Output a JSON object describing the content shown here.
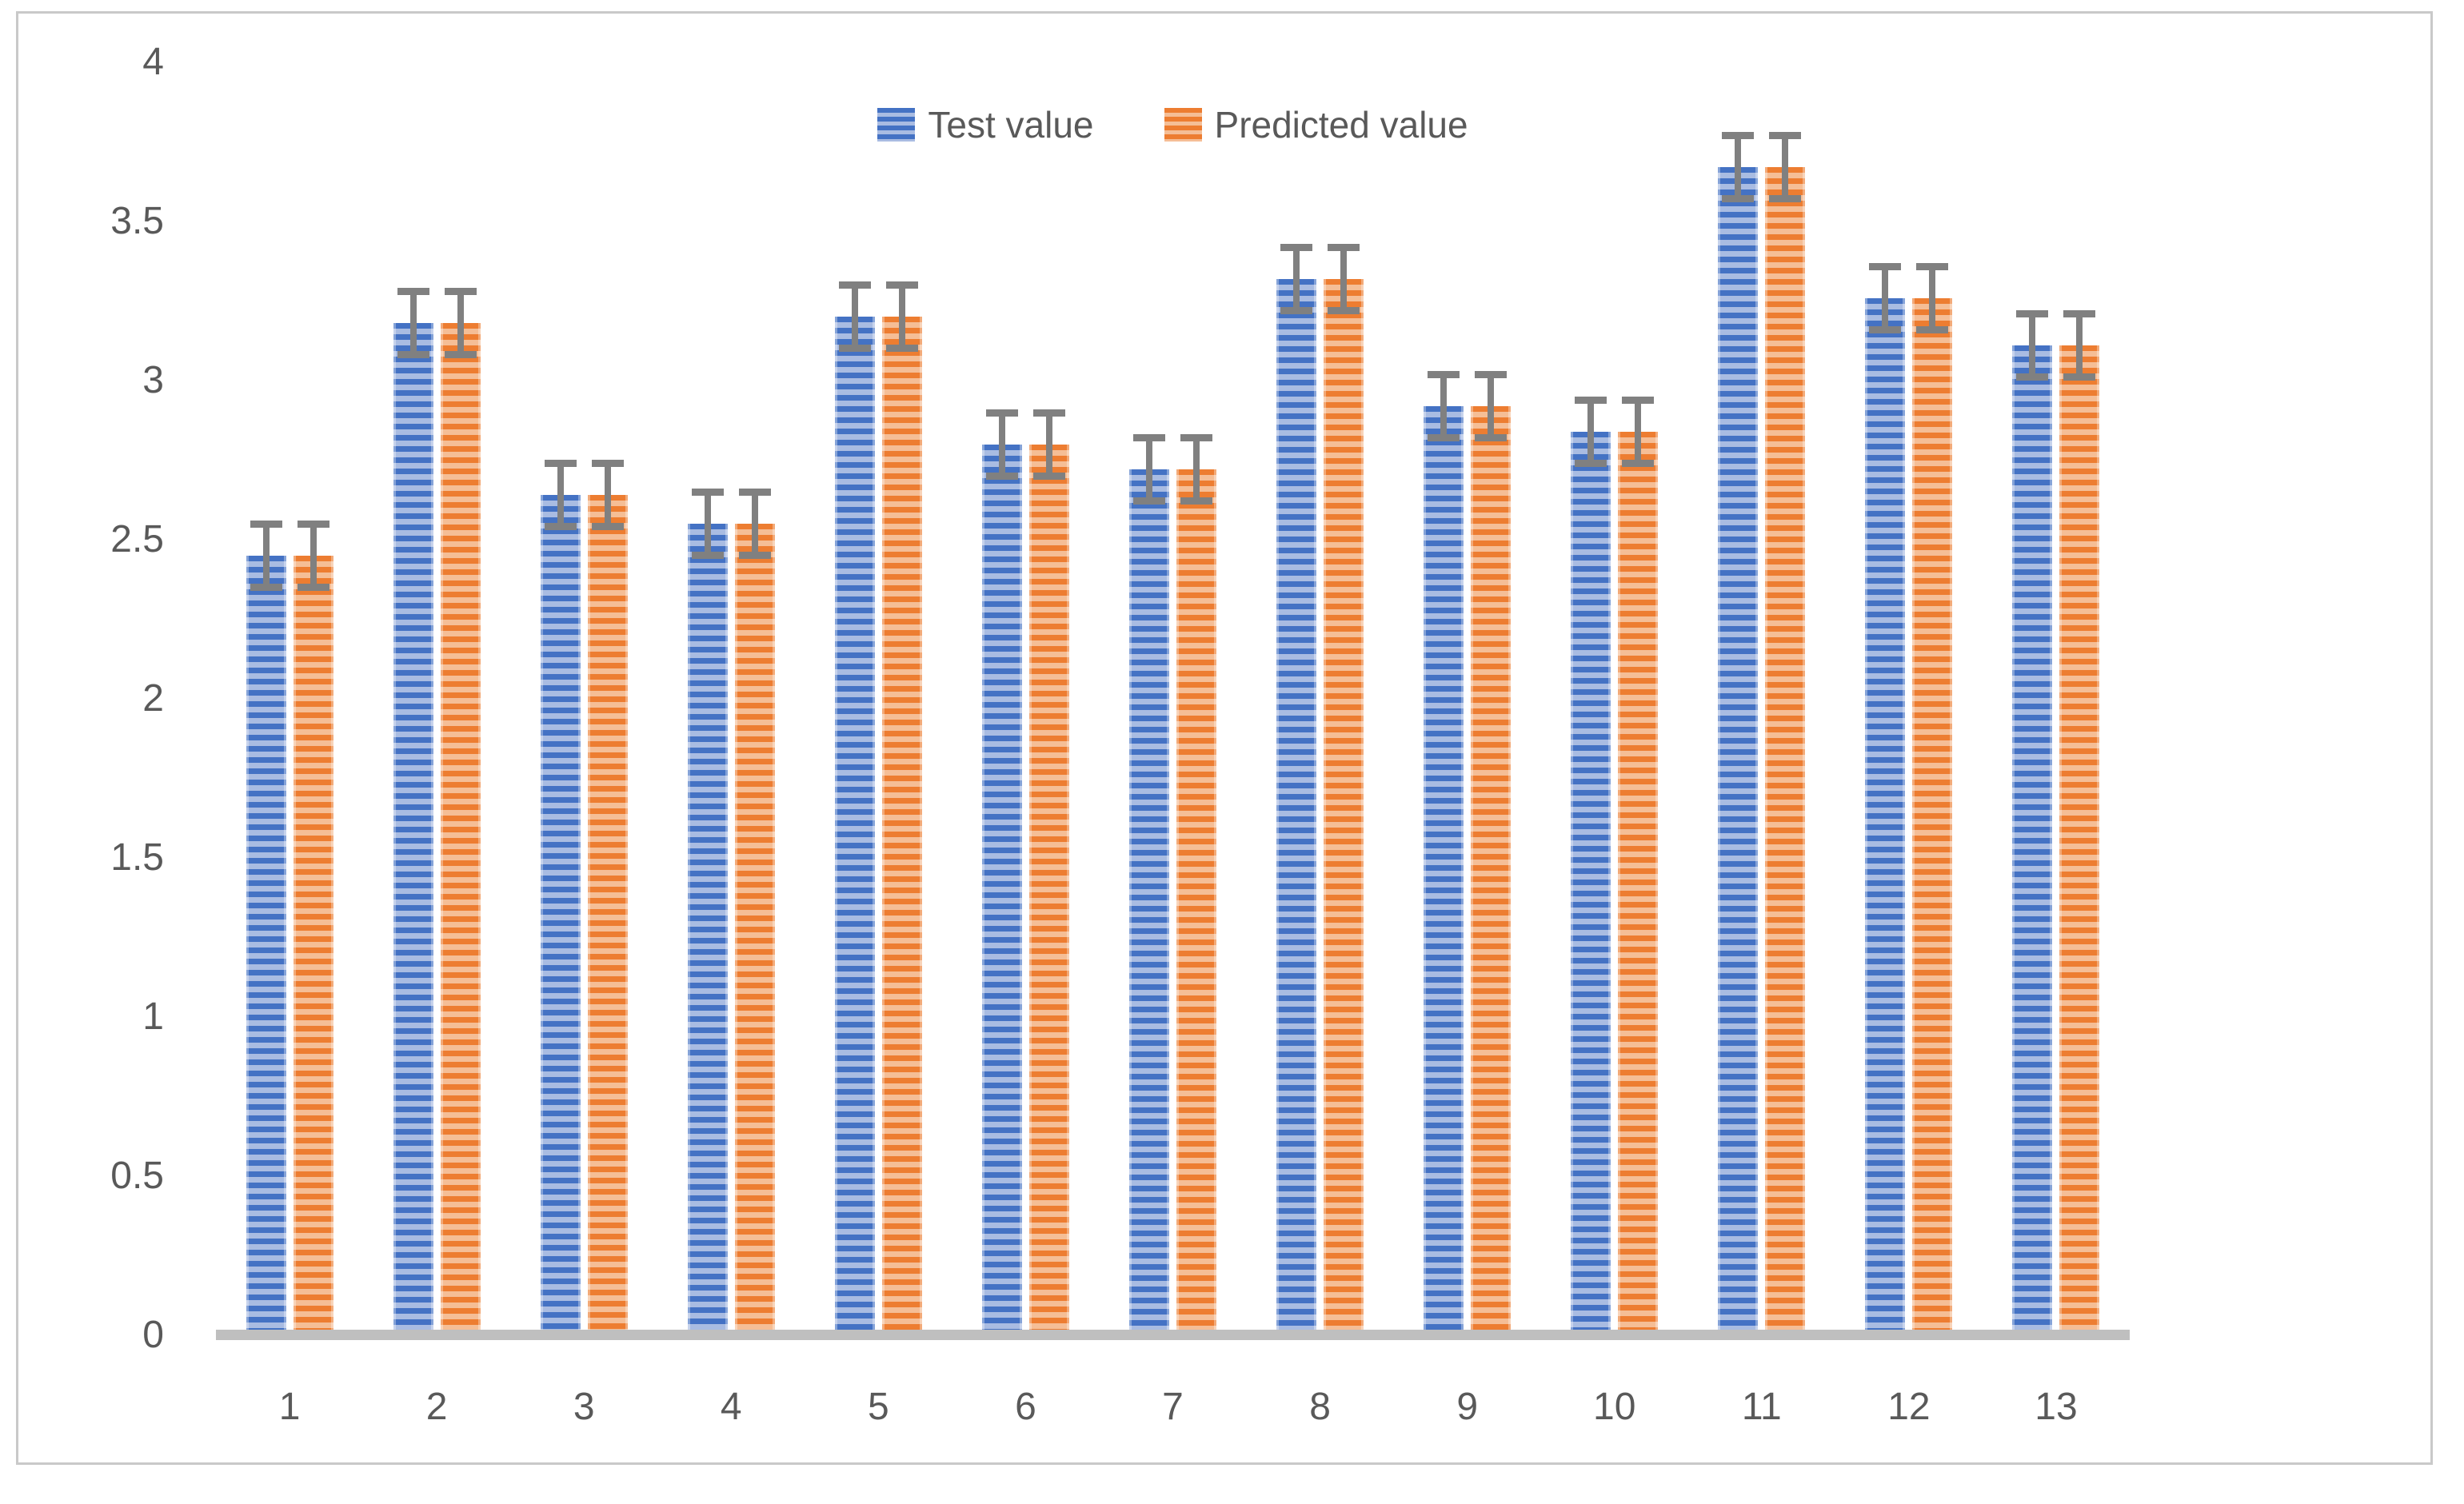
{
  "chart_data": {
    "type": "bar",
    "title": "",
    "xlabel": "",
    "ylabel": "",
    "categories": [
      "1",
      "2",
      "3",
      "4",
      "5",
      "6",
      "7",
      "8",
      "9",
      "10",
      "11",
      "12",
      "13"
    ],
    "series": [
      {
        "name": "Test value",
        "color": "#4472C4",
        "stripe_light": "#A9BCE2",
        "values": [
          2.45,
          3.18,
          2.64,
          2.55,
          3.2,
          2.8,
          2.72,
          3.32,
          2.92,
          2.84,
          3.67,
          3.26,
          3.11
        ]
      },
      {
        "name": "Predicted value",
        "color": "#ED7D31",
        "stripe_light": "#F5BE96",
        "values": [
          2.45,
          3.18,
          2.64,
          2.55,
          3.2,
          2.8,
          2.72,
          3.32,
          2.92,
          2.84,
          3.67,
          3.26,
          3.11
        ]
      }
    ],
    "error_bar": {
      "plus_minus": 0.1,
      "color": "#808080"
    },
    "ylim": [
      0,
      4
    ],
    "yticks": [
      4,
      3.5,
      3,
      2.5,
      2,
      1.5,
      1,
      0.5,
      0
    ],
    "ytick_labels": [
      "4",
      "3.5",
      "3",
      "2.5",
      "2",
      "1.5",
      "1",
      "0.5",
      "0"
    ],
    "grid": false,
    "legend_position": "top-center",
    "axis_line_color": "#BFBFBF",
    "text_color": "#595959",
    "frame_border_color": "#C9C9C9"
  }
}
